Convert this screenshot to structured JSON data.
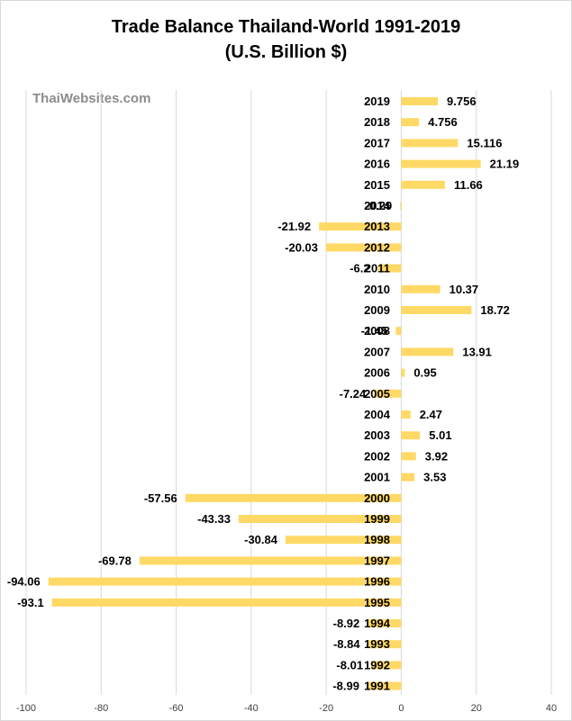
{
  "title_line1": "Trade Balance Thailand-World 1991-2019",
  "title_line2": "(U.S. Billion $)",
  "watermark": "ThaiWebsites.com",
  "colors": {
    "bar": "#ffd966",
    "grid": "#d9d9d9",
    "text": "#000000",
    "tick": "#404040"
  },
  "chart_data": {
    "type": "bar",
    "orientation": "horizontal",
    "categories": [
      "2019",
      "2018",
      "2017",
      "2016",
      "2015",
      "2014",
      "2013",
      "2012",
      "2011",
      "2010",
      "2009",
      "2008",
      "2007",
      "2006",
      "2005",
      "2004",
      "2003",
      "2002",
      "2001",
      "2000",
      "1999",
      "1998",
      "1997",
      "1996",
      "1995",
      "1994",
      "1993",
      "1992",
      "1991"
    ],
    "values": [
      9.756,
      4.756,
      15.116,
      21.19,
      11.66,
      -0.29,
      -21.92,
      -20.03,
      -6.2,
      10.37,
      18.72,
      -1.45,
      13.91,
      0.95,
      -7.24,
      2.47,
      5.01,
      3.92,
      3.53,
      -57.56,
      -43.33,
      -30.84,
      -69.78,
      -94.06,
      -93.1,
      -8.92,
      -8.84,
      -8.01,
      -8.99
    ],
    "value_labels": [
      "9.756",
      "4.756",
      "15.116",
      "21.19",
      "11.66",
      "-0.29",
      "-21.92",
      "-20.03",
      "-6.2",
      "10.37",
      "18.72",
      "-1.45",
      "13.91",
      "0.95",
      "-7.24",
      "2.47",
      "5.01",
      "3.92",
      "3.53",
      "-57.56",
      "-43.33",
      "-30.84",
      "-69.78",
      "-94.06",
      "-93.1",
      "-8.92",
      "-8.84",
      "-8.01",
      "-8.99"
    ],
    "xlim": [
      -100,
      40
    ],
    "x_ticks": [
      -100,
      -80,
      -60,
      -40,
      -20,
      0,
      20,
      40
    ],
    "x_tick_labels": [
      "-100",
      "-80",
      "-60",
      "-40",
      "-20",
      "0",
      "20",
      "40"
    ],
    "grid": true,
    "legend": "none"
  }
}
